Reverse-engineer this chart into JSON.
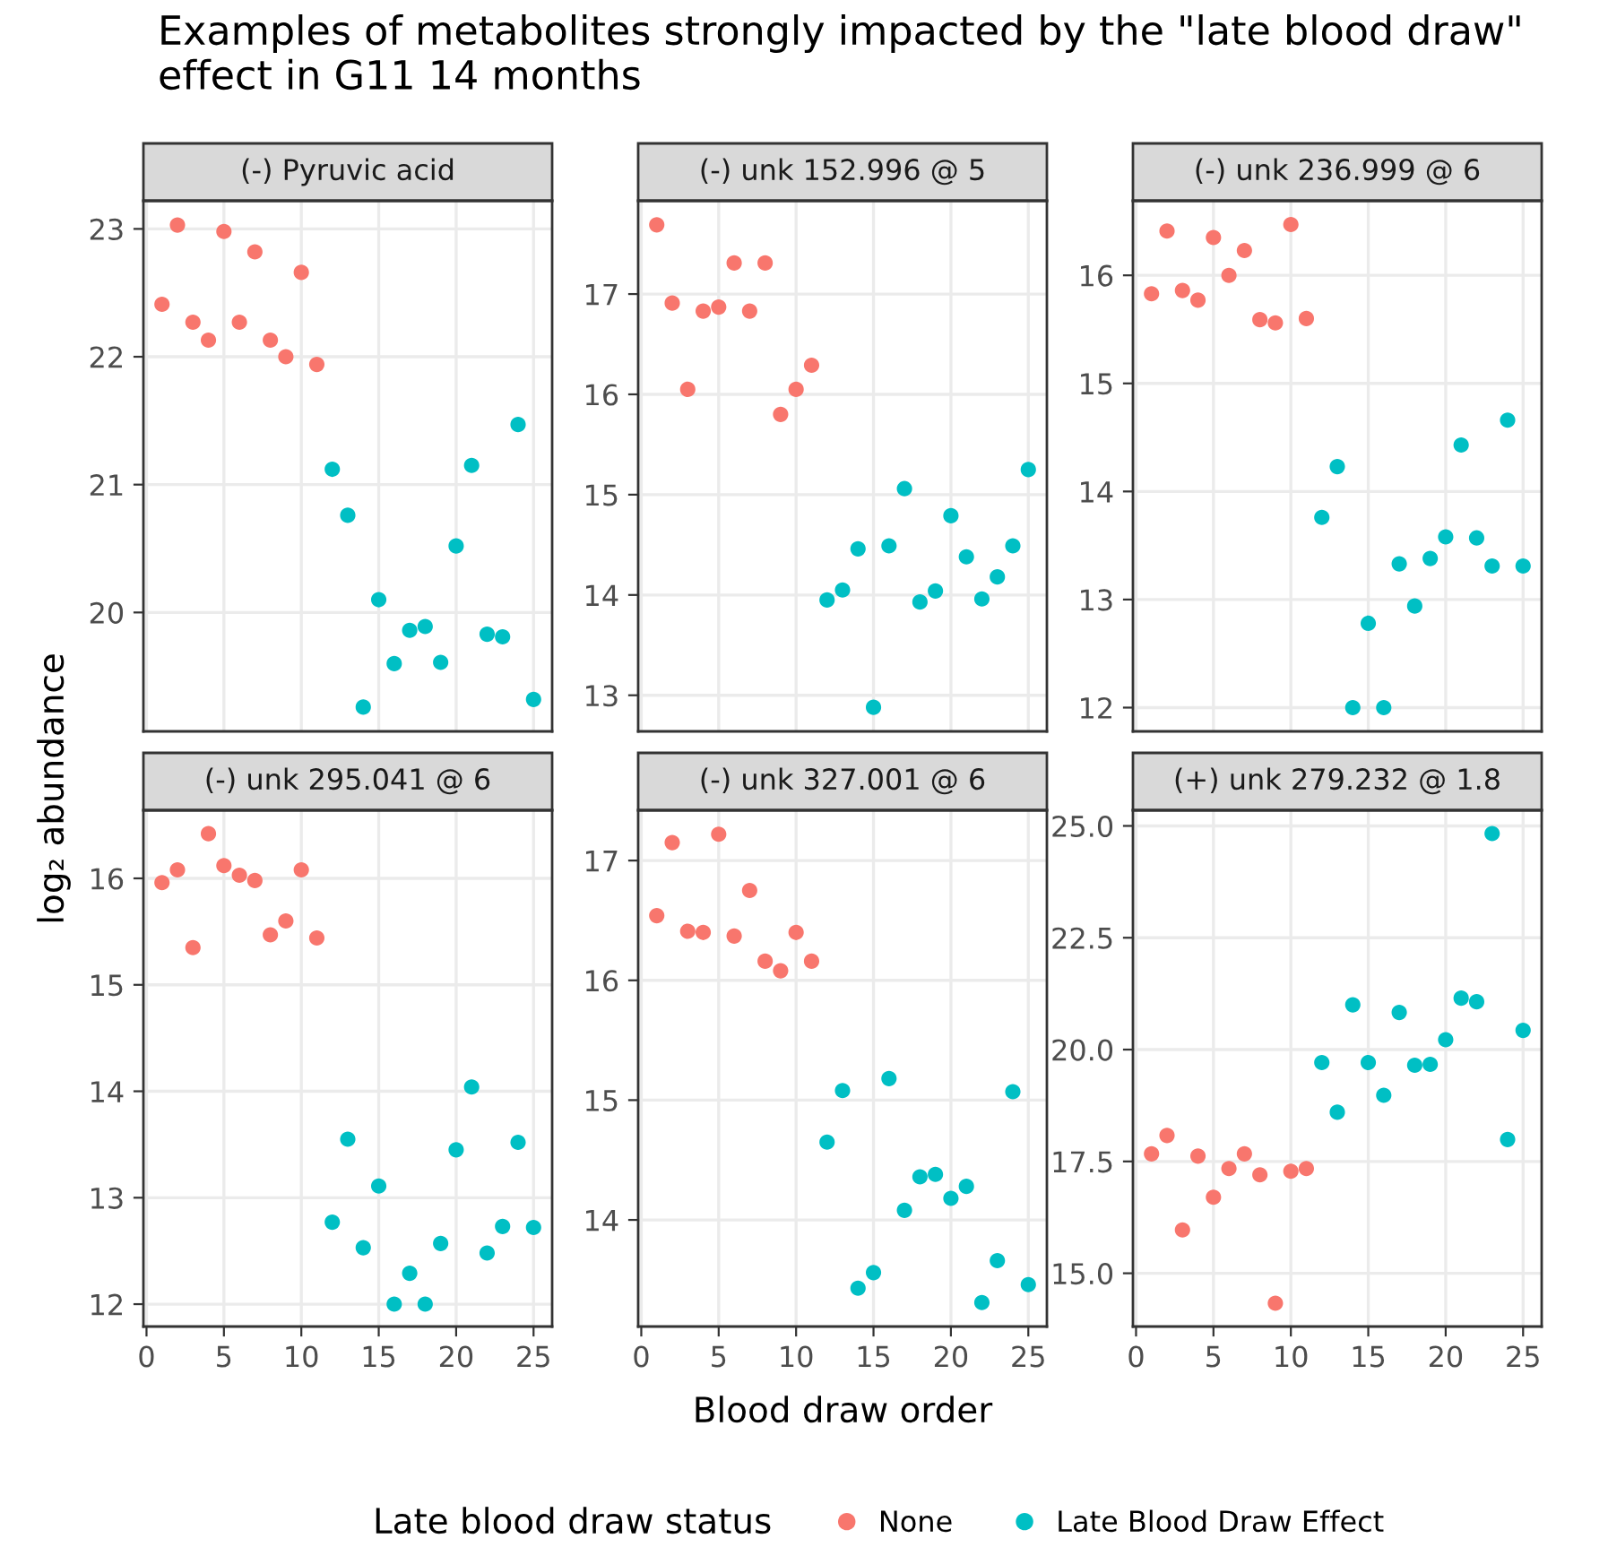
{
  "chart_data": [
    {
      "type": "scatter",
      "title": "(-) Pyruvic acid",
      "annotations": [
        "Examples of metabolites strongly impacted by the \"late blood draw\" effect in G11 14 months"
      ],
      "ylabel": "log₂ abundance",
      "legend_title": "Late blood draw status",
      "legend": "bottom",
      "marker": "circle",
      "grid": true,
      "tick_labels": "y",
      "xlim": [
        -0.2,
        26.2
      ],
      "xticks": [
        0,
        5,
        10,
        15,
        20,
        25
      ],
      "ylim": [
        19.07,
        23.22
      ],
      "yticks": [
        20,
        21,
        22,
        23
      ],
      "series": [
        {
          "name": "None",
          "color": "#f8766d",
          "x": [
            1,
            2,
            3,
            4,
            5,
            6,
            7,
            8,
            9,
            10,
            11
          ],
          "values": [
            22.41,
            23.03,
            22.27,
            22.13,
            22.98,
            22.27,
            22.82,
            22.13,
            22.0,
            22.66,
            21.94
          ]
        },
        {
          "name": "Late Blood Draw Effect",
          "color": "#00bfc4",
          "x": [
            12,
            13,
            14,
            15,
            16,
            17,
            18,
            19,
            20,
            21,
            22,
            23,
            24,
            25
          ],
          "values": [
            21.12,
            20.76,
            19.26,
            20.1,
            19.6,
            19.86,
            19.89,
            19.61,
            20.52,
            21.15,
            19.83,
            19.81,
            21.47,
            19.32
          ]
        }
      ]
    },
    {
      "type": "scatter",
      "title": "(-) unk 152.996 @ 5",
      "marker": "circle",
      "grid": true,
      "tick_labels": "y",
      "xlim": [
        -0.2,
        26.2
      ],
      "xticks": [
        0,
        5,
        10,
        15,
        20,
        25
      ],
      "ylim": [
        12.64,
        17.93
      ],
      "yticks": [
        13,
        14,
        15,
        16,
        17
      ],
      "series": [
        {
          "color": "#f8766d",
          "x": [
            1,
            2,
            3,
            4,
            5,
            6,
            7,
            8,
            9,
            10,
            11
          ],
          "values": [
            17.69,
            16.91,
            16.05,
            16.83,
            16.87,
            17.31,
            16.83,
            17.31,
            15.8,
            16.05,
            16.29
          ]
        },
        {
          "color": "#00bfc4",
          "x": [
            12,
            13,
            14,
            15,
            16,
            17,
            18,
            19,
            20,
            21,
            22,
            23,
            24,
            25
          ],
          "values": [
            13.95,
            14.05,
            14.46,
            12.88,
            14.49,
            15.06,
            13.93,
            14.04,
            14.79,
            14.38,
            13.96,
            14.18,
            14.49,
            15.25
          ]
        }
      ]
    },
    {
      "type": "scatter",
      "title": "(-) unk 236.999 @ 6",
      "marker": "circle",
      "grid": true,
      "tick_labels": "y",
      "xlim": [
        -0.2,
        26.2
      ],
      "xticks": [
        0,
        5,
        10,
        15,
        20,
        25
      ],
      "ylim": [
        11.78,
        16.69
      ],
      "yticks": [
        12,
        13,
        14,
        15,
        16
      ],
      "series": [
        {
          "color": "#f8766d",
          "x": [
            1,
            2,
            3,
            4,
            5,
            6,
            7,
            8,
            9,
            10,
            11
          ],
          "values": [
            15.83,
            16.41,
            15.86,
            15.77,
            16.35,
            16.0,
            16.23,
            15.59,
            15.56,
            16.47,
            15.6
          ]
        },
        {
          "color": "#00bfc4",
          "x": [
            12,
            13,
            14,
            15,
            16,
            17,
            18,
            19,
            20,
            21,
            22,
            23,
            24,
            25
          ],
          "values": [
            13.76,
            14.23,
            12.0,
            12.78,
            12.0,
            13.33,
            12.94,
            13.38,
            13.58,
            14.43,
            13.57,
            13.31,
            14.66,
            13.31
          ]
        }
      ]
    },
    {
      "type": "scatter",
      "title": "(-) unk 295.041 @ 6",
      "marker": "circle",
      "grid": true,
      "xlim": [
        -0.2,
        26.2
      ],
      "xticks": [
        0,
        5,
        10,
        15,
        20,
        25
      ],
      "ylim": [
        11.79,
        16.64
      ],
      "yticks": [
        12,
        13,
        14,
        15,
        16
      ],
      "series": [
        {
          "color": "#f8766d",
          "x": [
            1,
            2,
            3,
            4,
            5,
            6,
            7,
            8,
            9,
            10,
            11
          ],
          "values": [
            15.96,
            16.08,
            15.35,
            16.42,
            16.12,
            16.03,
            15.98,
            15.47,
            15.6,
            16.08,
            15.44
          ]
        },
        {
          "color": "#00bfc4",
          "x": [
            12,
            13,
            14,
            15,
            16,
            17,
            18,
            19,
            20,
            21,
            22,
            23,
            24,
            25
          ],
          "values": [
            12.77,
            13.55,
            12.53,
            13.11,
            12.0,
            12.29,
            12.0,
            12.57,
            13.45,
            14.04,
            12.48,
            12.73,
            13.52,
            12.72
          ]
        }
      ]
    },
    {
      "type": "scatter",
      "title": "(-) unk 327.001 @ 6",
      "xlabel": "Blood draw order",
      "marker": "circle",
      "grid": true,
      "xlim": [
        -0.2,
        26.2
      ],
      "xticks": [
        0,
        5,
        10,
        15,
        20,
        25
      ],
      "ylim": [
        13.11,
        17.42
      ],
      "yticks": [
        14,
        15,
        16,
        17
      ],
      "series": [
        {
          "color": "#f8766d",
          "x": [
            1,
            2,
            3,
            4,
            5,
            6,
            7,
            8,
            9,
            10,
            11
          ],
          "values": [
            16.54,
            17.15,
            16.41,
            16.4,
            17.22,
            16.37,
            16.75,
            16.16,
            16.08,
            16.4,
            16.16
          ]
        },
        {
          "color": "#00bfc4",
          "x": [
            12,
            13,
            14,
            15,
            16,
            17,
            18,
            19,
            20,
            21,
            22,
            23,
            24,
            25
          ],
          "values": [
            14.65,
            15.08,
            13.43,
            13.56,
            15.18,
            14.08,
            14.36,
            14.38,
            14.18,
            14.28,
            13.31,
            13.66,
            15.07,
            13.46
          ]
        }
      ]
    },
    {
      "type": "scatter",
      "title": "(+) unk 279.232 @ 1.8",
      "marker": "circle",
      "grid": true,
      "xlim": [
        -0.2,
        26.2
      ],
      "xticks": [
        0,
        5,
        10,
        15,
        20,
        25
      ],
      "ylim": [
        13.81,
        25.35
      ],
      "yticks": [
        {
          "value": 15,
          "label": "15.0"
        },
        {
          "value": 17.5,
          "label": "17.5"
        },
        {
          "value": 20,
          "label": "20.0"
        },
        {
          "value": 22.5,
          "label": "22.5"
        },
        {
          "value": 25,
          "label": "25.0"
        }
      ],
      "series": [
        {
          "color": "#f8766d",
          "x": [
            1,
            2,
            3,
            4,
            5,
            6,
            7,
            8,
            9,
            10,
            11
          ],
          "values": [
            17.67,
            18.08,
            15.97,
            17.62,
            16.7,
            17.34,
            17.67,
            17.2,
            14.33,
            17.28,
            17.34
          ]
        },
        {
          "color": "#00bfc4",
          "x": [
            12,
            13,
            14,
            15,
            16,
            17,
            18,
            19,
            20,
            21,
            22,
            23,
            24,
            25
          ],
          "values": [
            19.71,
            18.6,
            21.0,
            19.71,
            18.98,
            20.83,
            19.65,
            19.67,
            20.22,
            21.15,
            21.07,
            24.83,
            17.99,
            20.43
          ]
        }
      ]
    }
  ]
}
